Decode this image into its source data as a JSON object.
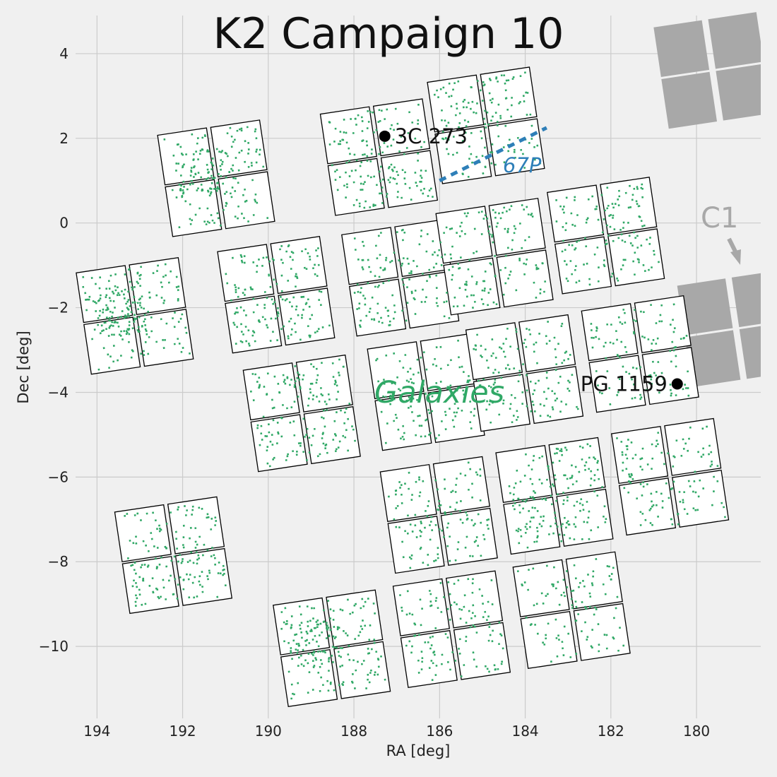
{
  "chart_data": {
    "type": "scatter",
    "title": "K2 Campaign 10",
    "xlabel": "RA [deg]",
    "ylabel": "Dec [deg]",
    "xlim": [
      194.5,
      178.5
    ],
    "ylim": [
      -11.7,
      4.9
    ],
    "x_ticks": [
      194,
      192,
      190,
      188,
      186,
      184,
      182,
      180
    ],
    "y_ticks": [
      4,
      2,
      0,
      -2,
      -4,
      -6,
      -8,
      -10
    ],
    "y_tick_labels": [
      "4",
      "2",
      "0",
      "−2",
      "−4",
      "−6",
      "−8",
      "−10"
    ],
    "grid": true,
    "colors": {
      "background": "#f0f0f0",
      "grid": "#cbcbcb",
      "targets": "#30a866",
      "channel_fill": "#ffffff",
      "channel_edge": "#000000",
      "c1_field": "#a8a8a8",
      "comet": "#2e7fb8",
      "marker": "#000000"
    },
    "modules": [
      {
        "ra": 191.2,
        "dec": 1.05,
        "density": 1.2
      },
      {
        "ra": 187.4,
        "dec": 1.55,
        "density": 1.0
      },
      {
        "ra": 184.9,
        "dec": 2.3,
        "density": 0.9
      },
      {
        "ra": 193.1,
        "dec": -2.2,
        "density": 1.35
      },
      {
        "ra": 189.8,
        "dec": -1.7,
        "density": 1.0
      },
      {
        "ra": 186.9,
        "dec": -1.3,
        "density": 0.8
      },
      {
        "ra": 184.7,
        "dec": -0.8,
        "density": 0.8
      },
      {
        "ra": 182.1,
        "dec": -0.3,
        "density": 0.85
      },
      {
        "ra": 189.2,
        "dec": -4.5,
        "density": 1.0
      },
      {
        "ra": 186.3,
        "dec": -4.0,
        "density": 0.7
      },
      {
        "ra": 184.0,
        "dec": -3.55,
        "density": 0.8
      },
      {
        "ra": 181.3,
        "dec": -3.1,
        "density": 0.7
      },
      {
        "ra": 186.0,
        "dec": -6.9,
        "density": 0.8
      },
      {
        "ra": 183.3,
        "dec": -6.45,
        "density": 1.05
      },
      {
        "ra": 180.6,
        "dec": -6.0,
        "density": 0.75
      },
      {
        "ra": 192.2,
        "dec": -7.85,
        "density": 1.0
      },
      {
        "ra": 188.5,
        "dec": -10.05,
        "density": 1.25
      },
      {
        "ra": 185.7,
        "dec": -9.6,
        "density": 0.75
      },
      {
        "ra": 182.9,
        "dec": -9.15,
        "density": 0.65
      }
    ],
    "c1_modules": [
      {
        "ra": 179.6,
        "dec": 3.6
      },
      {
        "ra": 179.05,
        "dec": -2.5
      }
    ],
    "comet": {
      "label": "67P",
      "path": [
        [
          186.0,
          1.0
        ],
        [
          183.5,
          2.25
        ]
      ]
    },
    "annotations": [
      {
        "label": "3C 273",
        "ra": 187.28,
        "dec": 2.05
      },
      {
        "label": "PG 1159",
        "ra": 180.45,
        "dec": -3.8
      }
    ],
    "texts": {
      "galaxies": "Galaxies",
      "c1": "C1"
    }
  }
}
